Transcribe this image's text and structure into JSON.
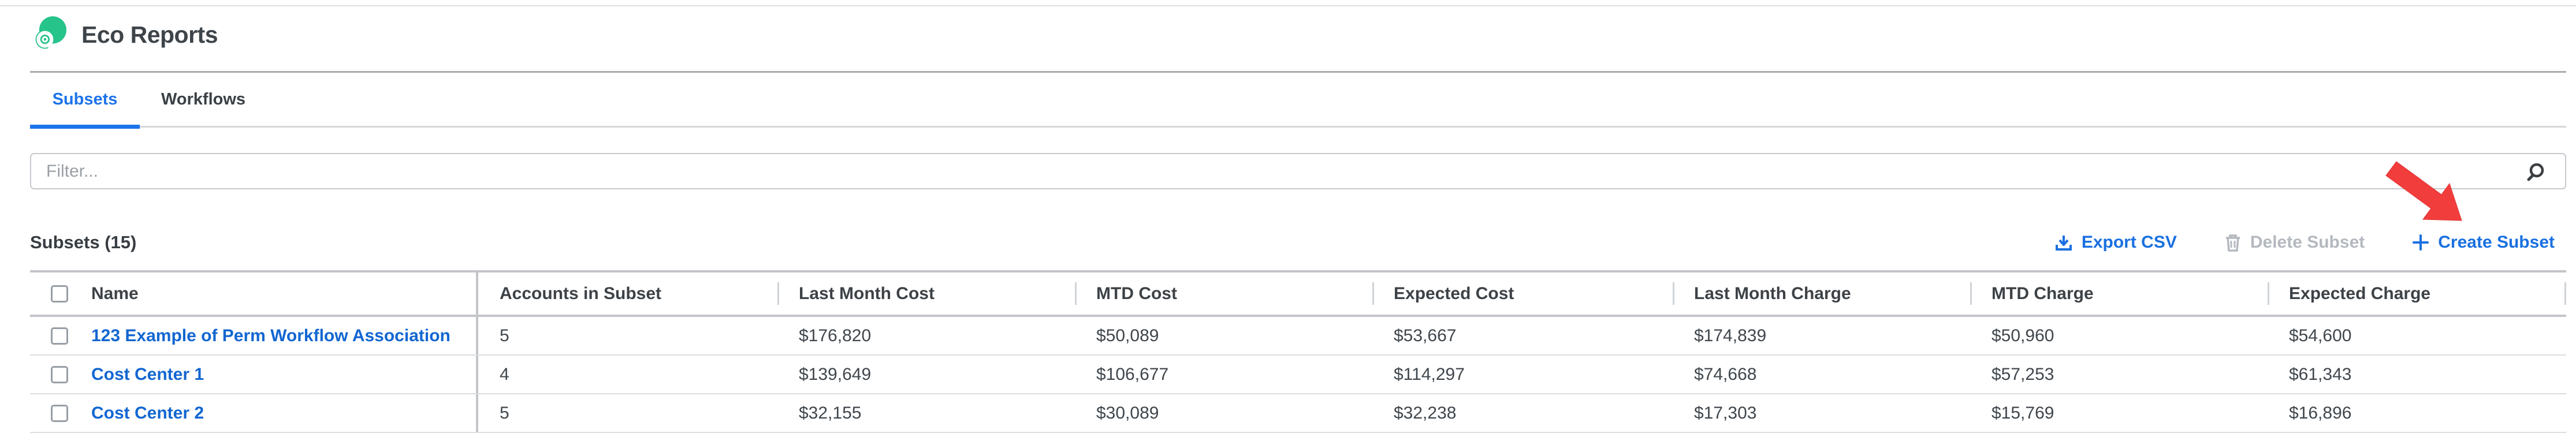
{
  "header": {
    "title": "Eco Reports"
  },
  "tabs": [
    {
      "label": "Subsets",
      "active": true
    },
    {
      "label": "Workflows",
      "active": false
    }
  ],
  "filter": {
    "placeholder": "Filter...",
    "value": ""
  },
  "toolbar": {
    "heading": "Subsets (15)",
    "export_label": "Export CSV",
    "delete_label": "Delete Subset",
    "create_label": "Create Subset"
  },
  "table": {
    "columns": [
      "Name",
      "Accounts in Subset",
      "Last Month Cost",
      "MTD Cost",
      "Expected Cost",
      "Last Month Charge",
      "MTD Charge",
      "Expected Charge"
    ],
    "rows": [
      {
        "name": "123 Example of Perm Workflow Association",
        "values": [
          "5",
          "$176,820",
          "$50,089",
          "$53,667",
          "$174,839",
          "$50,960",
          "$54,600"
        ]
      },
      {
        "name": "Cost Center 1",
        "values": [
          "4",
          "$139,649",
          "$106,677",
          "$114,297",
          "$74,668",
          "$57,253",
          "$61,343"
        ]
      },
      {
        "name": "Cost Center 2",
        "values": [
          "5",
          "$32,155",
          "$30,089",
          "$32,238",
          "$17,303",
          "$15,769",
          "$16,896"
        ]
      }
    ]
  },
  "icons": {
    "logo": "eco-swirl-icon",
    "search": "magnifier-icon",
    "export": "download-icon",
    "delete": "trash-icon",
    "create": "plus-icon",
    "annotation": "red-arrow-pointer"
  },
  "colors": {
    "accent_blue": "#1a70e0",
    "link_blue": "#1266d1",
    "tab_blue": "#1d73e8",
    "logo_green": "#26c38b",
    "arrow_red": "#f23d3d",
    "disabled_gray": "#b4b9bf",
    "text_dark": "#3f464c"
  }
}
